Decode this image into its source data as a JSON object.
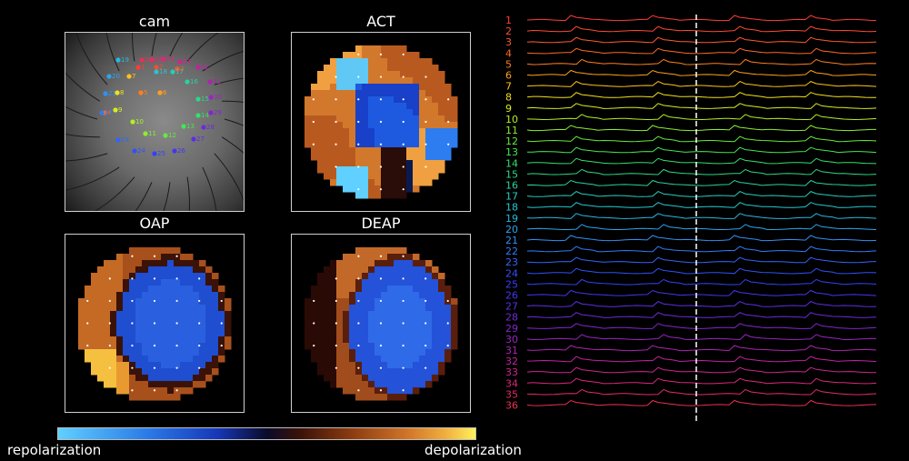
{
  "panels": {
    "cam": {
      "title": "cam"
    },
    "act": {
      "title": "ACT"
    },
    "oap": {
      "title": "OAP"
    },
    "deap": {
      "title": "DEAP"
    }
  },
  "colorbar": {
    "left_label": "repolarization",
    "right_label": "depolarization"
  },
  "channels": [
    "1",
    "2",
    "3",
    "4",
    "5",
    "6",
    "7",
    "8",
    "9",
    "10",
    "11",
    "12",
    "13",
    "14",
    "15",
    "16",
    "17",
    "18",
    "19",
    "20",
    "21",
    "22",
    "23",
    "24",
    "25",
    "26",
    "27",
    "28",
    "29",
    "30",
    "31",
    "32",
    "33",
    "34",
    "35",
    "36"
  ],
  "channel_colors": [
    "#ff3b3b",
    "#ff4a33",
    "#ff5a2c",
    "#ff6a25",
    "#ff7f1f",
    "#ffa01a",
    "#ffc11a",
    "#f2df1a",
    "#d6ee1c",
    "#b2f023",
    "#8bee2d",
    "#63ea3a",
    "#45e64f",
    "#35e06a",
    "#2dd886",
    "#27d3a0",
    "#25ceba",
    "#25c6cf",
    "#27b8e0",
    "#2aa6ee",
    "#2d92f5",
    "#2f7cf8",
    "#3066fa",
    "#3151fb",
    "#3640f6",
    "#4636ee",
    "#5a2fe4",
    "#6e2ad9",
    "#8426cd",
    "#9a24c1",
    "#ae23b2",
    "#c023a1",
    "#cf258f",
    "#db287c",
    "#e42c67",
    "#ea3052"
  ],
  "cam_markers": [
    {
      "label": "1",
      "color": "#ff3b3b"
    },
    {
      "label": "2",
      "color": "#ff4a33"
    },
    {
      "label": "3",
      "color": "#ff5a2c"
    },
    {
      "label": "4",
      "color": "#ff6a25"
    },
    {
      "label": "5",
      "color": "#ff7f1f"
    },
    {
      "label": "6",
      "color": "#ffa01a"
    },
    {
      "label": "7",
      "color": "#ffc11a"
    },
    {
      "label": "8",
      "color": "#f2df1a"
    },
    {
      "label": "9",
      "color": "#d6ee1c"
    },
    {
      "label": "10",
      "color": "#b2f023"
    },
    {
      "label": "11",
      "color": "#8bee2d"
    },
    {
      "label": "12",
      "color": "#63ea3a"
    },
    {
      "label": "13",
      "color": "#45e64f"
    },
    {
      "label": "14",
      "color": "#35e06a"
    },
    {
      "label": "15",
      "color": "#2dd886"
    },
    {
      "label": "16",
      "color": "#27d3a0"
    },
    {
      "label": "17",
      "color": "#25ceba"
    },
    {
      "label": "18",
      "color": "#25c6cf"
    },
    {
      "label": "19",
      "color": "#27b8e0"
    },
    {
      "label": "20",
      "color": "#2aa6ee"
    },
    {
      "label": "21",
      "color": "#2d92f5"
    },
    {
      "label": "22",
      "color": "#2f7cf8"
    },
    {
      "label": "23",
      "color": "#3066fa"
    },
    {
      "label": "24",
      "color": "#3151fb"
    },
    {
      "label": "25",
      "color": "#3640f6"
    },
    {
      "label": "26",
      "color": "#4636ee"
    },
    {
      "label": "27",
      "color": "#5a2fe4"
    },
    {
      "label": "28",
      "color": "#6e2ad9"
    },
    {
      "label": "29",
      "color": "#8426cd"
    },
    {
      "label": "30",
      "color": "#9a24c1"
    },
    {
      "label": "31",
      "color": "#ae23b2"
    },
    {
      "label": "32",
      "color": "#c023a1"
    },
    {
      "label": "33",
      "color": "#cf258f"
    },
    {
      "label": "34",
      "color": "#db287c"
    },
    {
      "label": "35",
      "color": "#e42c67"
    },
    {
      "label": "36",
      "color": "#ea3052"
    }
  ]
}
